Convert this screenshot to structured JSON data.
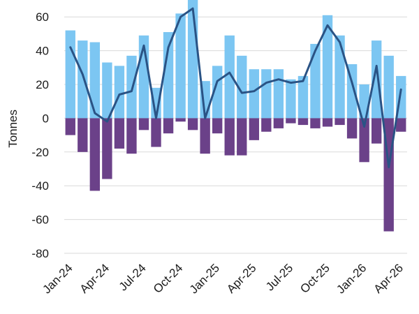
{
  "chart_data": {
    "type": "bar",
    "ylabel": "Tonnes",
    "ylim": [
      -80,
      70
    ],
    "yticks": [
      -80,
      -60,
      -40,
      -20,
      0,
      20,
      40,
      60
    ],
    "grid": true,
    "categories": [
      "Jan-24",
      "Feb-24",
      "Mar-24",
      "Apr-24",
      "May-24",
      "Jun-24",
      "Jul-24",
      "Aug-24",
      "Sep-24",
      "Oct-24",
      "Nov-24",
      "Dec-24",
      "Jan-25",
      "Feb-25",
      "Mar-25",
      "Apr-25",
      "May-25",
      "Jun-25",
      "Jul-25",
      "Aug-25",
      "Sep-25",
      "Oct-25",
      "Nov-25",
      "Dec-25",
      "Jan-26",
      "Feb-26",
      "Mar-26",
      "Apr-26"
    ],
    "x_tick_labels": [
      "Jan-24",
      "Apr-24",
      "Jul-24",
      "Oct-24",
      "Jan-25",
      "Apr-25",
      "Jul-25",
      "Oct-25",
      "Jan-26",
      "Apr-26"
    ],
    "series": [
      {
        "type": "bar",
        "color": "#7cc6f2",
        "values": [
          52,
          46,
          45,
          33,
          31,
          37,
          49,
          18,
          51,
          62,
          74,
          22,
          31,
          49,
          37,
          29,
          29,
          29,
          23,
          25,
          44,
          61,
          49,
          32,
          20,
          46,
          37,
          25
        ]
      },
      {
        "type": "bar",
        "color": "#6b4189",
        "values": [
          -10,
          -20,
          -43,
          -36,
          -18,
          -21,
          -7,
          -17,
          -9,
          -2,
          -7,
          -21,
          -9,
          -22,
          -22,
          -13,
          -8,
          -6,
          -3,
          -4,
          -6,
          -5,
          -4,
          -12,
          -26,
          -15,
          -67,
          -8
        ]
      },
      {
        "type": "line",
        "color": "#2a5385",
        "values": [
          42,
          26,
          3,
          -2,
          14,
          16,
          43,
          0,
          42,
          60,
          65,
          0,
          22,
          27,
          15,
          16,
          21,
          23,
          21,
          22,
          40,
          55,
          45,
          21,
          -5,
          31,
          -29,
          17
        ]
      }
    ]
  }
}
